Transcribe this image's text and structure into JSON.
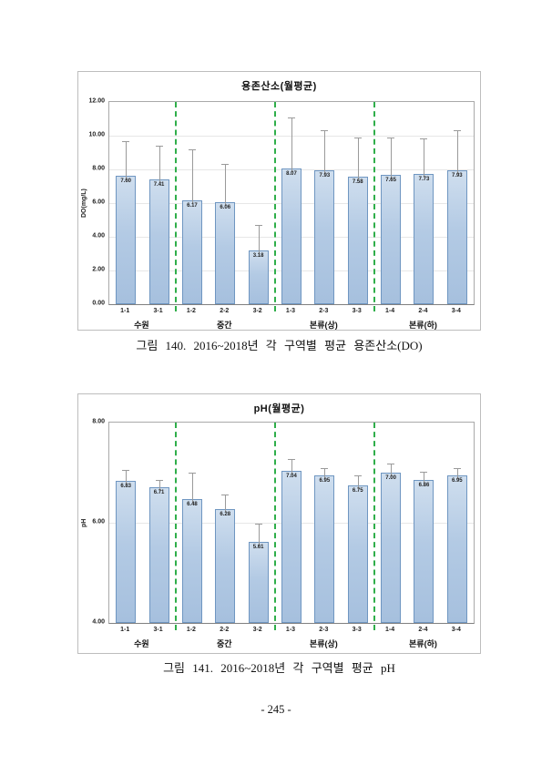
{
  "page": {
    "number": "- 245 -"
  },
  "captions": [
    "그림 140. 2016~2018년 각 구역별 평균 용존산소(DO)",
    "그림 141. 2016~2018년 각 구역별 평균 pH"
  ],
  "colors": {
    "bar_fill": "#b3cae4",
    "bar_border": "#6f96c1",
    "separator_green": "#2fae4a",
    "error_bar": "#9a9a9a",
    "gridline": "#e7e7e7"
  },
  "chart_data": [
    {
      "type": "bar",
      "title": "용존산소(월평균)",
      "ylabel": "DO(mg/L)",
      "xlabel": "",
      "ylim": [
        0,
        12
      ],
      "ytick_values": [
        12,
        10,
        8,
        6,
        4,
        2,
        0
      ],
      "ytick_labels": [
        "12.00",
        "10.00",
        "8.00",
        "6.00",
        "4.00",
        "2.00",
        "0.00"
      ],
      "grid": true,
      "legend": false,
      "categories": [
        "1-1",
        "3-1",
        "1-2",
        "2-2",
        "3-2",
        "1-3",
        "2-3",
        "3-3",
        "1-4",
        "2-4",
        "3-4"
      ],
      "values": [
        7.6,
        7.41,
        6.17,
        6.06,
        3.18,
        8.07,
        7.93,
        7.58,
        7.65,
        7.73,
        7.93
      ],
      "error_top": [
        9.7,
        9.4,
        9.2,
        8.3,
        4.7,
        11.1,
        10.35,
        9.9,
        9.9,
        9.85,
        10.35
      ],
      "groups": [
        {
          "label": "수원",
          "count": 2
        },
        {
          "label": "중간",
          "count": 3
        },
        {
          "label": "본류(상)",
          "count": 3
        },
        {
          "label": "본류(하)",
          "count": 3
        }
      ]
    },
    {
      "type": "bar",
      "title": "pH(월평균)",
      "ylabel": "pH",
      "xlabel": "",
      "ylim": [
        4,
        8
      ],
      "ytick_values": [
        8,
        6,
        4
      ],
      "ytick_labels": [
        "8.00",
        "6.00",
        "4.00"
      ],
      "grid": true,
      "legend": false,
      "categories": [
        "1-1",
        "3-1",
        "1-2",
        "2-2",
        "3-2",
        "1-3",
        "2-3",
        "3-3",
        "1-4",
        "2-4",
        "3-4"
      ],
      "values": [
        6.83,
        6.71,
        6.48,
        6.28,
        5.61,
        7.04,
        6.95,
        6.75,
        7.0,
        6.86,
        6.95
      ],
      "error_top": [
        7.05,
        6.85,
        7.0,
        6.57,
        5.99,
        7.28,
        7.1,
        6.95,
        7.18,
        7.02,
        7.1
      ],
      "groups": [
        {
          "label": "수원",
          "count": 2
        },
        {
          "label": "중간",
          "count": 3
        },
        {
          "label": "본류(상)",
          "count": 3
        },
        {
          "label": "본류(하)",
          "count": 3
        }
      ]
    }
  ]
}
